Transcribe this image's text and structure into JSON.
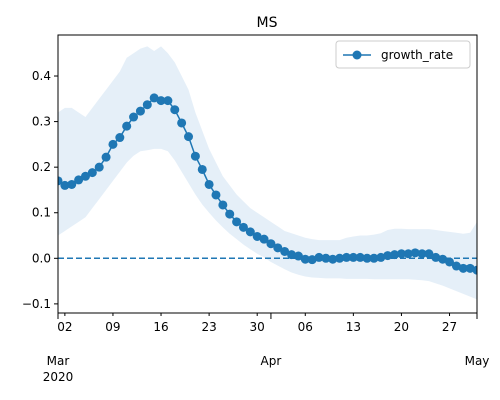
{
  "chart_data": {
    "type": "line",
    "title": "MS",
    "xlabel": "",
    "ylabel": "",
    "ylim": [
      -0.12,
      0.49
    ],
    "xlim": [
      "2020-03-01",
      "2020-05-01"
    ],
    "grid": false,
    "legend_position": "top-right",
    "y_ticks": [
      -0.1,
      0.0,
      0.1,
      0.2,
      0.3,
      0.4
    ],
    "y_tick_labels": [
      "−0.1",
      "0.0",
      "0.1",
      "0.2",
      "0.3",
      "0.4"
    ],
    "x_minor_ticks": [
      {
        "date": "2020-03-02",
        "label": "02"
      },
      {
        "date": "2020-03-09",
        "label": "09"
      },
      {
        "date": "2020-03-16",
        "label": "16"
      },
      {
        "date": "2020-03-23",
        "label": "23"
      },
      {
        "date": "2020-03-30",
        "label": "30"
      },
      {
        "date": "2020-04-06",
        "label": "06"
      },
      {
        "date": "2020-04-13",
        "label": "13"
      },
      {
        "date": "2020-04-20",
        "label": "20"
      },
      {
        "date": "2020-04-27",
        "label": "27"
      }
    ],
    "x_major_ticks": [
      {
        "date": "2020-03-01",
        "label": "Mar",
        "sublabel": "2020"
      },
      {
        "date": "2020-04-01",
        "label": "Apr",
        "sublabel": ""
      },
      {
        "date": "2020-05-01",
        "label": "May",
        "sublabel": ""
      }
    ],
    "reference_line": {
      "y": 0.0,
      "style": "dashed"
    },
    "colors": {
      "series": "#1f77b4",
      "band": "#dce9f5"
    },
    "series": [
      {
        "name": "growth_rate",
        "start_date": "2020-03-01",
        "values": [
          0.17,
          0.16,
          0.162,
          0.172,
          0.18,
          0.188,
          0.2,
          0.222,
          0.25,
          0.265,
          0.29,
          0.31,
          0.323,
          0.337,
          0.352,
          0.346,
          0.346,
          0.326,
          0.297,
          0.267,
          0.224,
          0.195,
          0.162,
          0.139,
          0.117,
          0.097,
          0.08,
          0.068,
          0.058,
          0.048,
          0.042,
          0.032,
          0.023,
          0.015,
          0.008,
          0.005,
          -0.002,
          -0.003,
          0.002,
          0.0,
          -0.002,
          0.0,
          0.002,
          0.002,
          0.002,
          0.0,
          0.0,
          0.002,
          0.006,
          0.008,
          0.01,
          0.01,
          0.012,
          0.01,
          0.01,
          0.002,
          -0.002,
          -0.008,
          -0.017,
          -0.022,
          -0.022,
          -0.026
        ],
        "lower": [
          0.05,
          0.06,
          0.07,
          0.08,
          0.09,
          0.11,
          0.13,
          0.15,
          0.17,
          0.19,
          0.21,
          0.225,
          0.235,
          0.237,
          0.24,
          0.24,
          0.235,
          0.215,
          0.19,
          0.165,
          0.14,
          0.118,
          0.1,
          0.083,
          0.068,
          0.054,
          0.042,
          0.03,
          0.02,
          0.01,
          0.002,
          -0.008,
          -0.016,
          -0.024,
          -0.031,
          -0.036,
          -0.04,
          -0.042,
          -0.043,
          -0.044,
          -0.044,
          -0.044,
          -0.045,
          -0.045,
          -0.045,
          -0.045,
          -0.046,
          -0.046,
          -0.046,
          -0.046,
          -0.046,
          -0.046,
          -0.047,
          -0.048,
          -0.05,
          -0.055,
          -0.06,
          -0.066,
          -0.072,
          -0.078,
          -0.084,
          -0.09
        ],
        "upper": [
          0.32,
          0.33,
          0.33,
          0.32,
          0.31,
          0.33,
          0.35,
          0.37,
          0.39,
          0.41,
          0.44,
          0.45,
          0.46,
          0.465,
          0.455,
          0.465,
          0.45,
          0.43,
          0.4,
          0.37,
          0.32,
          0.28,
          0.24,
          0.21,
          0.18,
          0.16,
          0.14,
          0.125,
          0.11,
          0.1,
          0.09,
          0.08,
          0.07,
          0.06,
          0.055,
          0.05,
          0.045,
          0.042,
          0.04,
          0.04,
          0.04,
          0.04,
          0.045,
          0.048,
          0.05,
          0.05,
          0.052,
          0.055,
          0.062,
          0.065,
          0.065,
          0.064,
          0.064,
          0.064,
          0.064,
          0.062,
          0.06,
          0.058,
          0.056,
          0.054,
          0.056,
          0.08
        ]
      }
    ]
  }
}
